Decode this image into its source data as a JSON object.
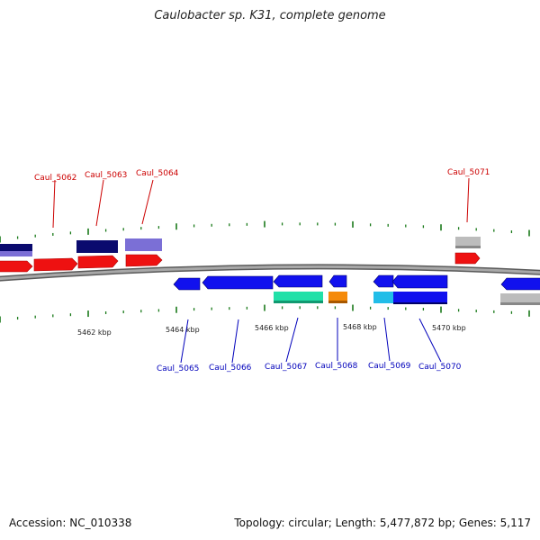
{
  "title": "Caulobacter sp. K31, complete genome",
  "footer": {
    "accession": "Accession: NC_010338",
    "summary": "Topology: circular; Length: 5,477,872 bp; Genes: 5,117"
  },
  "axis": {
    "ticks": [
      {
        "label": "5462 kbp",
        "kbp": 5462
      },
      {
        "label": "5464 kbp",
        "kbp": 5464
      },
      {
        "label": "5466 kbp",
        "kbp": 5466
      },
      {
        "label": "5468 kbp",
        "kbp": 5468
      },
      {
        "label": "5470 kbp",
        "kbp": 5470
      }
    ]
  },
  "colors": {
    "backbone": "#888888",
    "tick": "#1a7a1a",
    "forward_gene": "#ee1111",
    "reverse_gene": "#1111ee",
    "top_label": "#cc0000",
    "bottom_label": "#0000bb",
    "navy": "#0a0a6e",
    "lavender": "#7b6fd6",
    "gray": "#bcbcbc",
    "teal": "#22e0a8",
    "orange": "#f58a0a",
    "cyan": "#22bde8"
  },
  "top_labels": [
    {
      "name": "Caul_5062"
    },
    {
      "name": "Caul_5063"
    },
    {
      "name": "Caul_5064"
    },
    {
      "name": "Caul_5071"
    }
  ],
  "bottom_labels": [
    {
      "name": "Caul_5065"
    },
    {
      "name": "Caul_5066"
    },
    {
      "name": "Caul_5067"
    },
    {
      "name": "Caul_5068"
    },
    {
      "name": "Caul_5069"
    },
    {
      "name": "Caul_5070"
    }
  ]
}
